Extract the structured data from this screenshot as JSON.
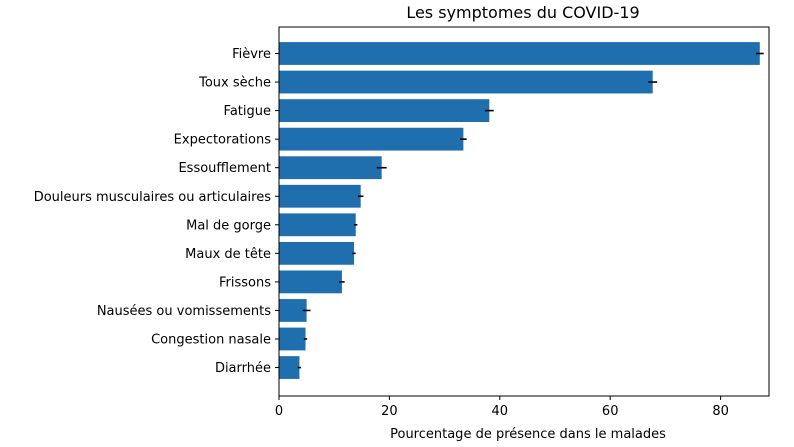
{
  "chart_data": {
    "type": "bar",
    "orientation": "horizontal",
    "title": "Les symptomes du COVID-19",
    "xlabel": "Pourcentage de présence dans le malades",
    "ylabel": "",
    "xlim": [
      0,
      90
    ],
    "xticks": [
      "0",
      "20",
      "40",
      "60",
      "80"
    ],
    "grid": false,
    "bar_color": "#1f6eae",
    "error_color": "#000000",
    "categories": [
      "Fièvre",
      "Toux sèche",
      "Fatigue",
      "Expectorations",
      "Essoufflement",
      "Douleurs musculaires ou articulaires",
      "Mal de gorge",
      "Maux de tête",
      "Frissons",
      "Nausées ou vomissements",
      "Congestion nasale",
      "Diarrhée"
    ],
    "values": [
      87.1,
      67.7,
      38.1,
      33.4,
      18.6,
      14.8,
      13.9,
      13.6,
      11.4,
      5.0,
      4.8,
      3.7
    ],
    "errors": [
      0.7,
      0.8,
      0.8,
      0.6,
      0.9,
      0.5,
      0.3,
      0.3,
      0.5,
      0.7,
      0.3,
      0.3
    ]
  }
}
